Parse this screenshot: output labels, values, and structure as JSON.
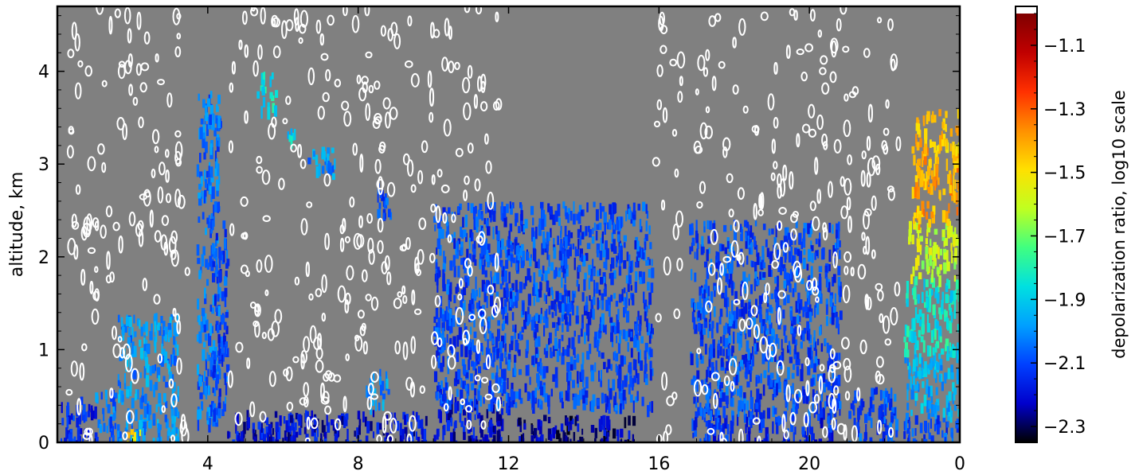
{
  "chart_data": {
    "type": "heatmap",
    "title": "",
    "xlabel": "",
    "ylabel": "altitude, km",
    "xlim": [
      0,
      24
    ],
    "ylim": [
      0,
      4.7
    ],
    "x_ticks": [
      "4",
      "8",
      "12",
      "16",
      "20",
      "0"
    ],
    "x_tick_values": [
      4,
      8,
      12,
      16,
      20,
      24
    ],
    "y_ticks": [
      "0",
      "1",
      "2",
      "3",
      "4"
    ],
    "y_tick_values": [
      0,
      1,
      2,
      3,
      4
    ],
    "grid": false,
    "background_color": "#808080",
    "contour_color": "#ffffff",
    "colorbar": {
      "label": "depolarization ratio, log10 scale",
      "min": -2.35,
      "max": -1.0,
      "ticks": [
        "−1.1",
        "−1.3",
        "−1.5",
        "−1.7",
        "−1.9",
        "−2.1",
        "−2.3"
      ],
      "tick_values": [
        -1.1,
        -1.3,
        -1.5,
        -1.7,
        -1.9,
        -2.1,
        -2.3
      ],
      "colormap": [
        "#000000",
        "#0000cc",
        "#0040ff",
        "#00a0ff",
        "#00e0e0",
        "#40ff80",
        "#c0ff20",
        "#ffe000",
        "#ff9000",
        "#ff3000",
        "#c00000",
        "#800000"
      ],
      "over_color": "#ffffff"
    },
    "regions": [
      {
        "x": [
          0,
          1.0
        ],
        "y": [
          0,
          0.5
        ],
        "value": -2.15
      },
      {
        "x": [
          1.0,
          1.6
        ],
        "y": [
          0,
          0.6
        ],
        "value": -2.05
      },
      {
        "x": [
          1.6,
          3.2
        ],
        "y": [
          0,
          1.4
        ],
        "value": -2.0
      },
      {
        "x": [
          1.8,
          2.2
        ],
        "y": [
          0,
          0.15
        ],
        "value": -1.5
      },
      {
        "x": [
          3.7,
          4.3
        ],
        "y": [
          0.2,
          3.8
        ],
        "value": -2.05
      },
      {
        "x": [
          4.1,
          4.5
        ],
        "y": [
          0.3,
          2.4
        ],
        "value": -2.1
      },
      {
        "x": [
          4.5,
          9.8
        ],
        "y": [
          0,
          0.35
        ],
        "value": -2.2
      },
      {
        "x": [
          5.3,
          5.8
        ],
        "y": [
          3.6,
          4.0
        ],
        "value": -1.85
      },
      {
        "x": [
          6.1,
          6.3
        ],
        "y": [
          3.2,
          3.4
        ],
        "value": -1.9
      },
      {
        "x": [
          6.6,
          7.4
        ],
        "y": [
          2.9,
          3.2
        ],
        "value": -2.0
      },
      {
        "x": [
          8.5,
          8.9
        ],
        "y": [
          2.4,
          2.8
        ],
        "value": -2.1
      },
      {
        "x": [
          8.2,
          8.8
        ],
        "y": [
          0.4,
          0.8
        ],
        "value": -2.0
      },
      {
        "x": [
          10.0,
          11.8
        ],
        "y": [
          0,
          0.5
        ],
        "value": -2.2
      },
      {
        "x": [
          10.0,
          15.8
        ],
        "y": [
          0.4,
          2.6
        ],
        "value": -2.1
      },
      {
        "x": [
          12.2,
          15.5
        ],
        "y": [
          0,
          0.3
        ],
        "value": -2.25
      },
      {
        "x": [
          16.8,
          20.8
        ],
        "y": [
          0.3,
          2.4
        ],
        "value": -2.1
      },
      {
        "x": [
          16.8,
          20.8
        ],
        "y": [
          0,
          0.3
        ],
        "value": -2.15
      },
      {
        "x": [
          21.0,
          22.3
        ],
        "y": [
          0,
          0.6
        ],
        "value": -2.1
      },
      {
        "x": [
          22.5,
          24
        ],
        "y": [
          0,
          0.3
        ],
        "value": -2.1
      },
      {
        "x": [
          22.5,
          24
        ],
        "y": [
          0.3,
          1.0
        ],
        "value": -1.95
      },
      {
        "x": [
          22.5,
          24
        ],
        "y": [
          1.0,
          1.8
        ],
        "value": -1.85
      },
      {
        "x": [
          22.6,
          24
        ],
        "y": [
          1.8,
          2.4
        ],
        "value": -1.6
      },
      {
        "x": [
          22.7,
          24
        ],
        "y": [
          2.4,
          3.2
        ],
        "value": -1.4
      },
      {
        "x": [
          22.8,
          24
        ],
        "y": [
          3.2,
          3.6
        ],
        "value": -1.45
      }
    ]
  }
}
